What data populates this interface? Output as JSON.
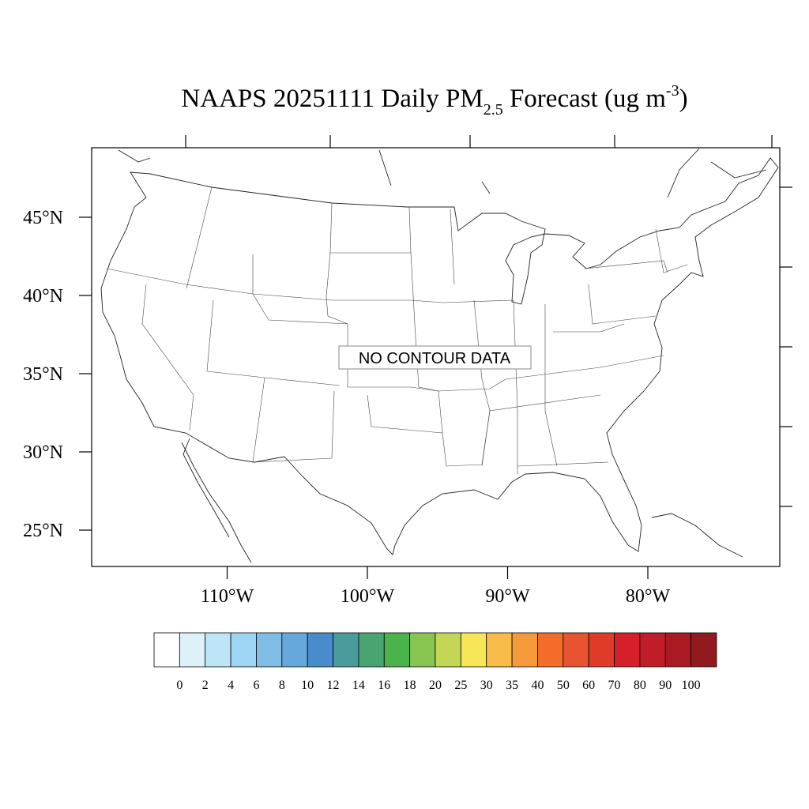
{
  "title": {
    "main": "NAAPS 20251111 Daily PM",
    "subscript": "2.5",
    "rest": " Forecast (ug m",
    "superscript": "-3",
    "close": ")"
  },
  "message": "NO CONTOUR DATA",
  "latitude_labels": [
    {
      "value": 45,
      "label": "45°N"
    },
    {
      "value": 40,
      "label": "40°N"
    },
    {
      "value": 35,
      "label": "35°N"
    },
    {
      "value": 30,
      "label": "30°N"
    },
    {
      "value": 25,
      "label": "25°N"
    }
  ],
  "longitude_labels": [
    {
      "value": -110,
      "label": "110°W"
    },
    {
      "value": -100,
      "label": "100°W"
    },
    {
      "value": -90,
      "label": "90°W"
    },
    {
      "value": -80,
      "label": "80°W"
    }
  ],
  "colorbar": {
    "colors": [
      "#ffffff",
      "#ddf1fb",
      "#bde5f7",
      "#9dd6f4",
      "#80bde6",
      "#67a8dc",
      "#4a8ccb",
      "#4a9c9c",
      "#48a471",
      "#4ab44a",
      "#88c550",
      "#c3d655",
      "#f8e659",
      "#f8bd48",
      "#f59a3b",
      "#f36c2a",
      "#e85430",
      "#e03b28",
      "#d62029",
      "#bf1d27",
      "#aa1a22",
      "#911a1f"
    ],
    "labels": [
      0,
      2,
      4,
      6,
      8,
      10,
      12,
      14,
      16,
      18,
      20,
      25,
      30,
      35,
      40,
      50,
      60,
      70,
      80,
      90,
      100
    ]
  }
}
